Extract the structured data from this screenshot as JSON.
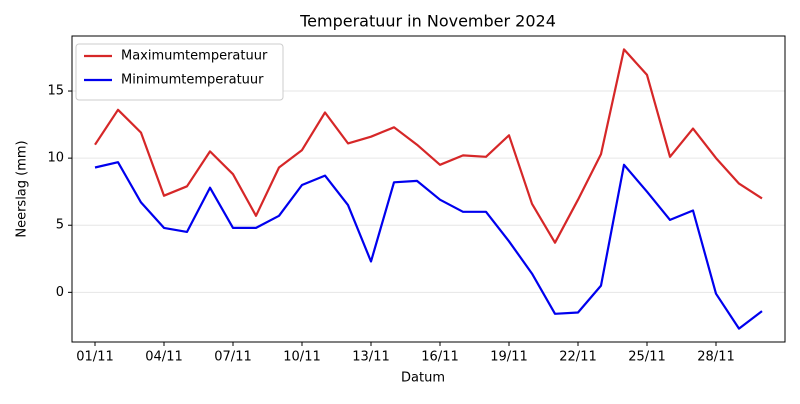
{
  "chart_data": {
    "type": "line",
    "title": "Temperatuur in November 2024",
    "xlabel": "Datum",
    "ylabel": "Neerslag (mm)",
    "categories": [
      "01/11",
      null,
      null,
      "04/11",
      null,
      null,
      "07/11",
      null,
      null,
      "10/11",
      null,
      null,
      "13/11",
      null,
      null,
      "16/11",
      null,
      null,
      "19/11",
      null,
      null,
      "22/11",
      null,
      null,
      "25/11",
      null,
      null,
      "28/11",
      null,
      null
    ],
    "series": [
      {
        "name": "Maximumtemperatuur",
        "color": "#d62728",
        "values": [
          11.0,
          13.6,
          11.9,
          7.2,
          7.9,
          10.5,
          8.8,
          5.7,
          9.3,
          10.6,
          13.4,
          11.1,
          11.6,
          12.3,
          11.0,
          9.5,
          10.2,
          10.1,
          11.7,
          6.6,
          3.7,
          6.9,
          10.3,
          18.1,
          16.2,
          10.1,
          12.2,
          10.0,
          8.1,
          7.0
        ]
      },
      {
        "name": "Minimumtemperatuur",
        "color": "#0000ee",
        "values": [
          9.3,
          9.7,
          6.7,
          4.8,
          4.5,
          7.8,
          4.8,
          4.8,
          5.7,
          8.0,
          8.7,
          6.5,
          2.3,
          8.2,
          8.3,
          6.9,
          6.0,
          6.0,
          3.8,
          1.4,
          -1.6,
          -1.5,
          0.5,
          9.5,
          7.5,
          5.4,
          6.1,
          -0.1,
          -2.7,
          -1.4
        ]
      }
    ],
    "ylim": [
      -3.7,
      19.1
    ],
    "yticks": [
      0,
      5,
      10,
      15
    ],
    "grid": true,
    "legend": "upper left"
  }
}
